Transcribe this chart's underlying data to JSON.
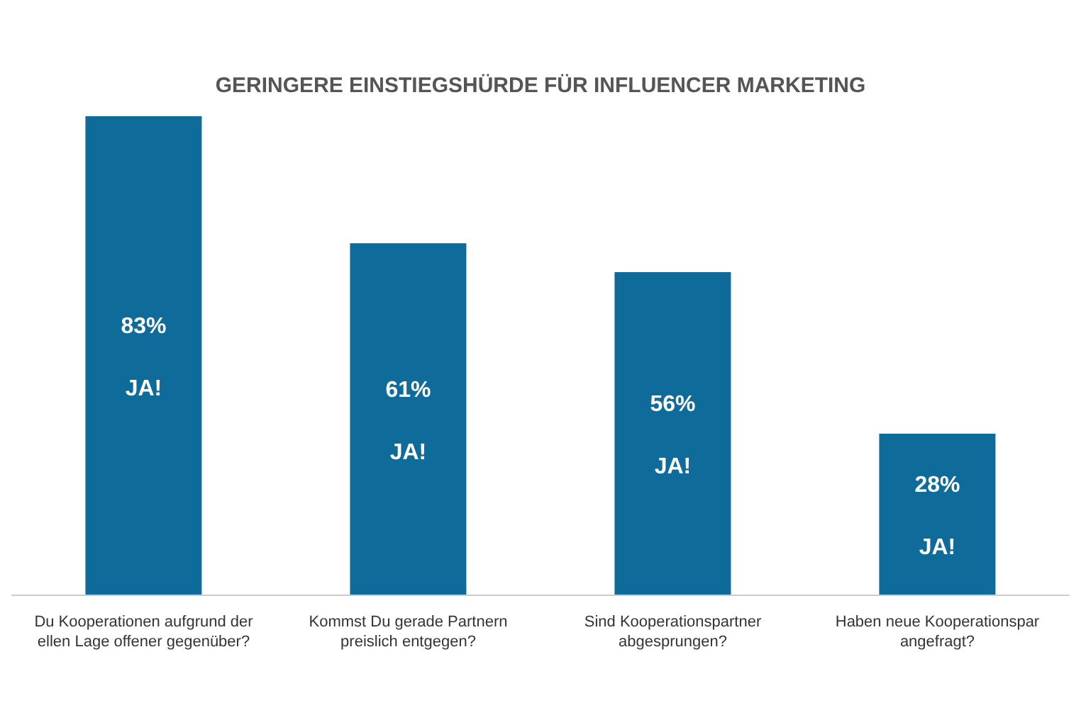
{
  "chart_data": {
    "type": "bar",
    "title": "GERINGERE EINSTIEGSHÜRDE FÜR INFLUENCER MARKETING",
    "categories": [
      "Du Kooperationen aufgrund der ellen Lage offener gegenüber?",
      "Kommst Du gerade Partnern preislich entgegen?",
      "Sind Kooperationspartner abgesprungen?",
      "Haben neue Kooperationspar angefragt?"
    ],
    "values": [
      83,
      61,
      56,
      28
    ],
    "value_labels": [
      "83%",
      "61%",
      "56%",
      "28%"
    ],
    "color": "#0f6b99",
    "annotations": [
      "JA!",
      "JA!",
      "JA!",
      "JA!"
    ]
  }
}
